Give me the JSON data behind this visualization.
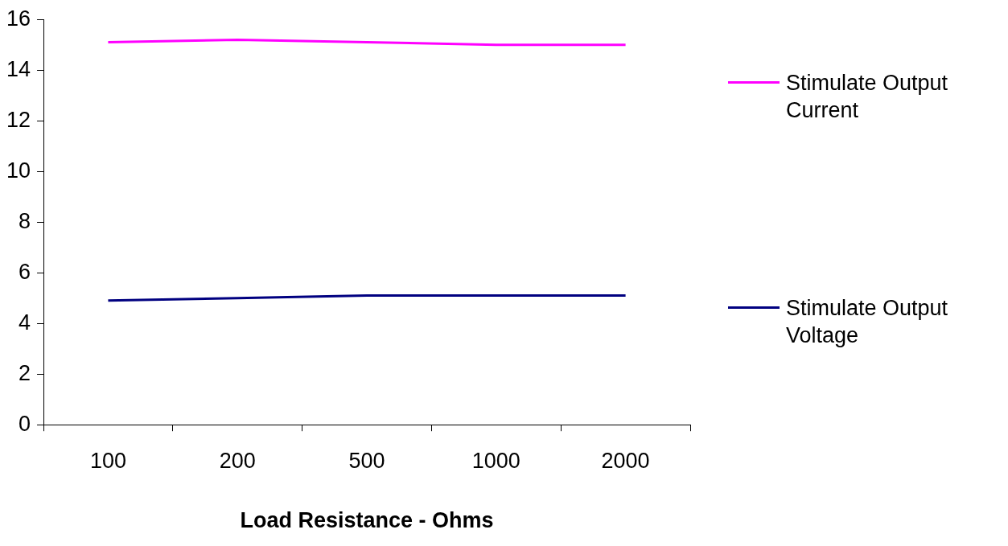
{
  "chart_data": {
    "type": "line",
    "xlabel": "Load Resistance - Ohms",
    "categories": [
      "100",
      "200",
      "500",
      "1000",
      "2000"
    ],
    "series": [
      {
        "name": "Stimulate Output Current",
        "color": "#ff00ff",
        "values": [
          15.1,
          15.2,
          15.1,
          15.0,
          15.0
        ]
      },
      {
        "name": "Stimulate Output Voltage",
        "color": "#000080",
        "values": [
          4.9,
          5.0,
          5.1,
          5.1,
          5.1
        ]
      }
    ],
    "ylim": [
      0,
      16
    ],
    "yticks": [
      0,
      2,
      4,
      6,
      8,
      10,
      12,
      14,
      16
    ],
    "grid": false,
    "legend": "right",
    "marker": "none",
    "line_style": "solid"
  }
}
